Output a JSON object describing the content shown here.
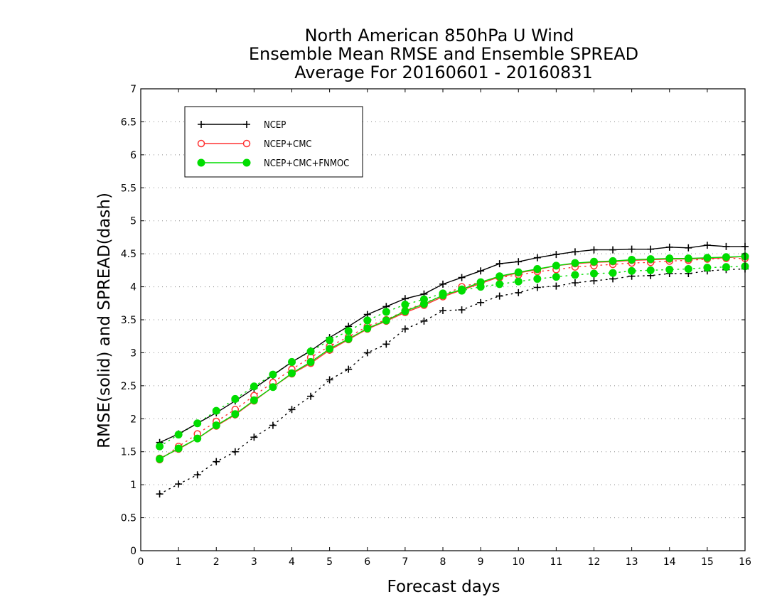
{
  "chart_data": {
    "type": "line",
    "title": "North American 850hPa U Wind",
    "subtitle": "Ensemble Mean RMSE and Ensemble SPREAD",
    "subtitle2": "Average For 20160601 - 20160831",
    "xlabel": "Forecast days",
    "ylabel": "RMSE(solid) and SPREAD(dash)",
    "xlim": [
      0,
      16
    ],
    "ylim": [
      0,
      7
    ],
    "xticks": [
      "0",
      "1",
      "2",
      "3",
      "4",
      "5",
      "6",
      "7",
      "8",
      "9",
      "10",
      "11",
      "12",
      "13",
      "14",
      "15",
      "16"
    ],
    "yticks": [
      "0",
      "0.5",
      "1",
      "1.5",
      "2",
      "2.5",
      "3",
      "3.5",
      "4",
      "4.5",
      "5",
      "5.5",
      "6",
      "6.5",
      "7"
    ],
    "grid": "horizontal dotted",
    "legend_position": "top-left",
    "x": [
      0.5,
      1,
      1.5,
      2,
      2.5,
      3,
      3.5,
      4,
      4.5,
      5,
      5.5,
      6,
      6.5,
      7,
      7.5,
      8,
      8.5,
      9,
      9.5,
      10,
      10.5,
      11,
      11.5,
      12,
      12.5,
      13,
      13.5,
      14,
      14.5,
      15,
      15.5,
      16
    ],
    "series": [
      {
        "name": "NCEP",
        "color": "#000000",
        "marker": "plus",
        "rmse": [
          1.64,
          1.77,
          1.93,
          2.09,
          2.27,
          2.46,
          2.66,
          2.86,
          3.03,
          3.23,
          3.4,
          3.58,
          3.7,
          3.82,
          3.89,
          4.04,
          4.14,
          4.24,
          4.35,
          4.38,
          4.44,
          4.49,
          4.53,
          4.56,
          4.56,
          4.57,
          4.57,
          4.6,
          4.59,
          4.63,
          4.61,
          4.61
        ],
        "spread": [
          0.86,
          1.01,
          1.15,
          1.35,
          1.5,
          1.72,
          1.9,
          2.14,
          2.34,
          2.59,
          2.75,
          3.0,
          3.13,
          3.36,
          3.48,
          3.64,
          3.65,
          3.76,
          3.86,
          3.91,
          3.99,
          4.01,
          4.06,
          4.09,
          4.12,
          4.16,
          4.17,
          4.2,
          4.2,
          4.24,
          4.26,
          4.27
        ]
      },
      {
        "name": "NCEP+CMC",
        "color": "#ff3333",
        "marker": "open-circle",
        "rmse": [
          1.4,
          1.54,
          1.7,
          1.89,
          2.06,
          2.27,
          2.48,
          2.68,
          2.84,
          3.04,
          3.2,
          3.36,
          3.48,
          3.61,
          3.72,
          3.85,
          3.95,
          4.05,
          4.15,
          4.21,
          4.26,
          4.32,
          4.35,
          4.37,
          4.38,
          4.4,
          4.41,
          4.42,
          4.42,
          4.43,
          4.44,
          4.46
        ],
        "spread": [
          1.38,
          1.58,
          1.77,
          1.96,
          2.14,
          2.35,
          2.55,
          2.75,
          2.93,
          3.1,
          3.24,
          3.4,
          3.5,
          3.64,
          3.75,
          3.87,
          4.0,
          4.07,
          4.14,
          4.18,
          4.23,
          4.26,
          4.3,
          4.32,
          4.34,
          4.36,
          4.37,
          4.39,
          4.4,
          4.42,
          4.43,
          4.43
        ]
      },
      {
        "name": "NCEP+CMC+FNMOC",
        "color": "#00dd00",
        "marker": "filled-circle",
        "rmse": [
          1.39,
          1.55,
          1.7,
          1.9,
          2.07,
          2.28,
          2.48,
          2.69,
          2.86,
          3.06,
          3.21,
          3.37,
          3.49,
          3.63,
          3.74,
          3.87,
          3.96,
          4.07,
          4.16,
          4.22,
          4.27,
          4.32,
          4.36,
          4.38,
          4.39,
          4.41,
          4.42,
          4.43,
          4.43,
          4.44,
          4.45,
          4.46
        ],
        "spread": [
          1.58,
          1.76,
          1.93,
          2.12,
          2.3,
          2.49,
          2.67,
          2.86,
          3.02,
          3.19,
          3.33,
          3.49,
          3.62,
          3.73,
          3.81,
          3.9,
          3.94,
          4.0,
          4.04,
          4.08,
          4.12,
          4.15,
          4.18,
          4.2,
          4.21,
          4.24,
          4.25,
          4.26,
          4.27,
          4.29,
          4.3,
          4.31
        ]
      }
    ]
  }
}
